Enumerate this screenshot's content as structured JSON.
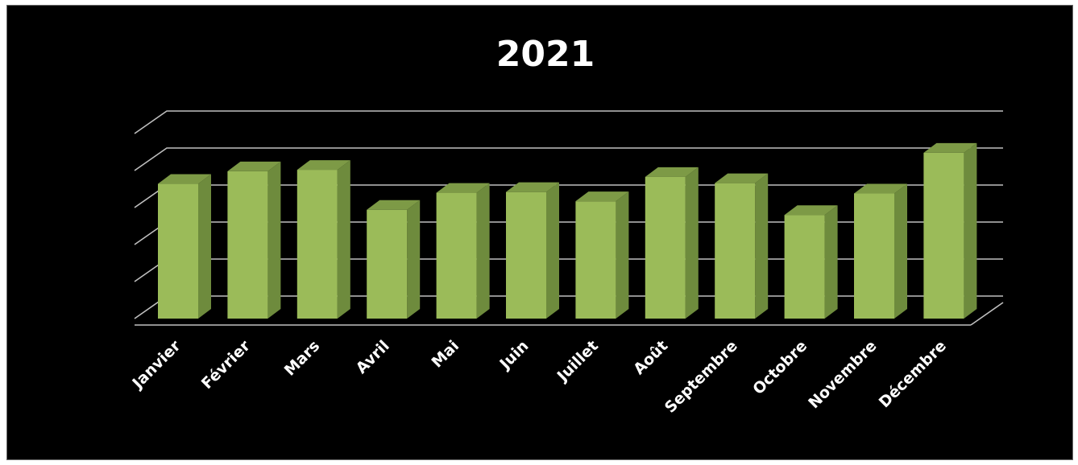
{
  "chart_data": {
    "type": "bar",
    "title": "2021",
    "categories": [
      "Janvier",
      "Février",
      "Mars",
      "Avril",
      "Mai",
      "Juin",
      "Juillet",
      "Août",
      "Septembre",
      "Octobre",
      "Novembre",
      "Décembre"
    ],
    "values": [
      3.64,
      3.98,
      4.02,
      2.94,
      3.4,
      3.42,
      3.17,
      3.83,
      3.66,
      2.8,
      3.38,
      4.48
    ],
    "ylim": [
      0,
      5
    ],
    "grid": true,
    "legend": "none",
    "y_tick_labels_shown": false,
    "style": "3d-column",
    "colors": {
      "bar_front": "#9bbb59",
      "bar_side": "#6e8b3d",
      "bar_top": "#7d9a46",
      "grid": "#bfbfbf",
      "background": "#000000",
      "text": "#ffffff"
    }
  }
}
